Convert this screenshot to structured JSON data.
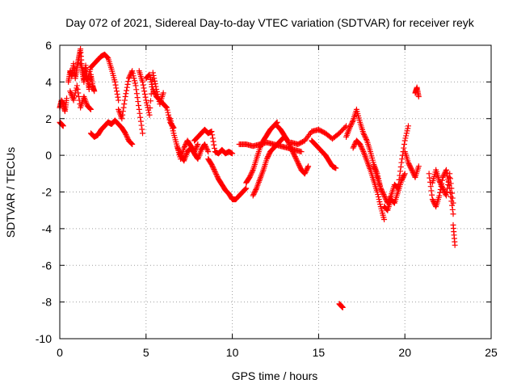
{
  "chart_data": {
    "type": "scatter",
    "title": "Day 072 of 2021, Sidereal Day-to-day VTEC variation (SDTVAR) for receiver reyk",
    "xlabel": "GPS time / hours",
    "ylabel": "SDTVAR / TECUs",
    "xlim": [
      0,
      25
    ],
    "ylim": [
      -10,
      6
    ],
    "xticks": [
      "0",
      "5",
      "10",
      "15",
      "20",
      "25"
    ],
    "yticks": [
      "-10",
      "-8",
      "-6",
      "-4",
      "-2",
      "0",
      "2",
      "4",
      "6"
    ],
    "grid": true,
    "marker": "+",
    "series": [
      {
        "name": "reyk",
        "color": "#ff0000",
        "tracks": [
          {
            "x": [
              0.0,
              0.1,
              0.2,
              0.3,
              0.4
            ],
            "y": [
              2.6,
              3.0,
              2.8,
              2.4,
              3.1
            ]
          },
          {
            "x": [
              0.0,
              0.1,
              0.2
            ],
            "y": [
              1.8,
              1.7,
              1.6
            ]
          },
          {
            "x": [
              0.5,
              0.6,
              0.7,
              0.8,
              0.9,
              1.0,
              1.1,
              1.2,
              1.3,
              1.4,
              1.5,
              1.6,
              1.7,
              1.8,
              1.9,
              2.0
            ],
            "y": [
              4.0,
              4.6,
              4.3,
              5.0,
              4.2,
              4.8,
              5.3,
              5.8,
              4.6,
              4.0,
              4.9,
              4.2,
              3.6,
              4.4,
              3.8,
              3.5
            ]
          },
          {
            "x": [
              0.6,
              0.8,
              1.0,
              1.2,
              1.4,
              1.6,
              1.8
            ],
            "y": [
              3.5,
              3.0,
              3.8,
              2.6,
              3.2,
              2.7,
              2.5
            ]
          },
          {
            "x": [
              1.2,
              1.4,
              1.6,
              1.8,
              2.0,
              2.2,
              2.4,
              2.6,
              2.8,
              3.0,
              3.2,
              3.4
            ],
            "y": [
              5.0,
              4.4,
              4.1,
              4.8,
              5.0,
              5.2,
              5.4,
              5.5,
              5.3,
              4.7,
              4.0,
              3.0
            ]
          },
          {
            "x": [
              1.8,
              2.0,
              2.2,
              2.4,
              2.6,
              2.8,
              3.0
            ],
            "y": [
              1.2,
              1.0,
              1.1,
              1.4,
              1.6,
              1.8,
              1.7
            ]
          },
          {
            "x": [
              2.8,
              3.0,
              3.2,
              3.4,
              3.6,
              3.8,
              4.0,
              4.2
            ],
            "y": [
              1.8,
              1.7,
              1.9,
              1.7,
              1.5,
              1.2,
              0.8,
              0.6
            ]
          },
          {
            "x": [
              3.4,
              3.6,
              3.8,
              4.0,
              4.2,
              4.4,
              4.6,
              4.8
            ],
            "y": [
              2.5,
              2.0,
              3.2,
              4.2,
              4.6,
              3.8,
              2.5,
              1.2
            ]
          },
          {
            "x": [
              4.6,
              4.8,
              5.0,
              5.2,
              5.4,
              5.6,
              5.8,
              6.0
            ],
            "y": [
              4.6,
              4.0,
              3.0,
              2.2,
              4.5,
              3.6,
              2.8,
              3.4
            ]
          },
          {
            "x": [
              5.0,
              5.2,
              5.4,
              5.6,
              5.8,
              6.0,
              6.2,
              6.4,
              6.6
            ],
            "y": [
              4.2,
              4.4,
              3.6,
              3.2,
              3.0,
              2.8,
              2.6,
              1.8,
              1.5
            ]
          },
          {
            "x": [
              6.4,
              6.6,
              6.8,
              7.0,
              7.2,
              7.4,
              7.6,
              7.8,
              8.0
            ],
            "y": [
              2.0,
              1.2,
              0.5,
              -0.2,
              0.4,
              0.8,
              0.5,
              0.2,
              0.6
            ]
          },
          {
            "x": [
              6.8,
              7.0,
              7.2,
              7.4,
              7.6,
              7.8,
              8.0,
              8.2,
              8.4,
              8.6
            ],
            "y": [
              0.5,
              0.0,
              -0.3,
              0.2,
              0.4,
              0.1,
              -0.2,
              0.3,
              0.6,
              0.2
            ]
          },
          {
            "x": [
              7.8,
              8.0,
              8.2,
              8.4,
              8.6,
              8.8,
              9.0,
              9.2,
              9.4,
              9.6,
              9.8,
              10.0
            ],
            "y": [
              0.8,
              1.0,
              1.2,
              1.4,
              1.2,
              1.3,
              0.2,
              0.1,
              0.3,
              0.1,
              0.2,
              0.1
            ]
          },
          {
            "x": [
              8.6,
              8.8,
              9.0,
              9.2,
              9.4,
              9.6,
              9.8,
              10.0,
              10.2,
              10.4,
              10.6,
              10.8
            ],
            "y": [
              -0.2,
              -0.5,
              -0.9,
              -1.3,
              -1.6,
              -1.9,
              -2.1,
              -2.4,
              -2.4,
              -2.2,
              -2.0,
              -1.8
            ]
          },
          {
            "x": [
              10.8,
              11.0,
              11.2,
              11.4,
              11.6,
              11.8,
              12.0,
              12.2,
              12.4,
              12.6
            ],
            "y": [
              -1.5,
              -1.2,
              -0.8,
              -0.2,
              0.4,
              0.8,
              1.1,
              1.4,
              1.6,
              1.8
            ]
          },
          {
            "x": [
              11.2,
              11.4,
              11.6,
              11.8,
              12.0,
              12.2,
              12.4,
              12.6,
              12.8,
              13.0,
              13.2
            ],
            "y": [
              -2.2,
              -1.8,
              -1.3,
              -0.8,
              -0.2,
              0.2,
              0.4,
              0.6,
              0.8,
              1.0,
              0.8
            ]
          },
          {
            "x": [
              12.6,
              12.8,
              13.0,
              13.2,
              13.4,
              13.6,
              13.8,
              14.0,
              14.2,
              14.4
            ],
            "y": [
              1.6,
              1.4,
              1.1,
              0.8,
              0.4,
              0.0,
              -0.4,
              -0.8,
              -1.0,
              -0.6
            ]
          },
          {
            "x": [
              10.4,
              10.8,
              11.2,
              11.6,
              12.0,
              12.4,
              12.8,
              13.2,
              13.6,
              14.0
            ],
            "y": [
              0.6,
              0.6,
              0.5,
              0.6,
              0.7,
              0.6,
              0.5,
              0.4,
              0.3,
              0.2
            ]
          },
          {
            "x": [
              13.4,
              13.8,
              14.2,
              14.6,
              15.0,
              15.4,
              15.8,
              16.2,
              16.6
            ],
            "y": [
              0.7,
              0.6,
              0.8,
              1.3,
              1.4,
              1.2,
              0.9,
              1.2,
              1.6
            ]
          },
          {
            "x": [
              14.6,
              14.8,
              15.0,
              15.2,
              15.4,
              15.6,
              15.8,
              16.0
            ],
            "y": [
              0.8,
              0.6,
              0.4,
              0.2,
              0.0,
              -0.3,
              -0.6,
              -0.7
            ]
          },
          {
            "x": [
              16.2,
              16.3,
              16.4
            ],
            "y": [
              -8.1,
              -8.2,
              -8.3
            ]
          },
          {
            "x": [
              16.6,
              16.8,
              17.0,
              17.2,
              17.4,
              17.6,
              17.8,
              18.0,
              18.2,
              18.4,
              18.6
            ],
            "y": [
              1.0,
              1.5,
              1.9,
              2.5,
              1.8,
              1.2,
              0.8,
              0.2,
              -0.5,
              -1.0,
              -1.8
            ]
          },
          {
            "x": [
              17.0,
              17.2,
              17.4,
              17.6,
              17.8,
              18.0,
              18.2,
              18.4,
              18.6,
              18.8
            ],
            "y": [
              0.4,
              0.8,
              0.6,
              0.2,
              -0.3,
              -0.8,
              -1.4,
              -2.0,
              -2.8,
              -3.5
            ]
          },
          {
            "x": [
              18.2,
              18.4,
              18.6,
              18.8,
              19.0,
              19.2,
              19.4,
              19.6,
              19.8,
              20.0,
              20.2
            ],
            "y": [
              -0.6,
              -1.2,
              -1.8,
              -2.2,
              -2.6,
              -2.2,
              -1.6,
              -1.8,
              -0.4,
              0.8,
              1.6
            ]
          },
          {
            "x": [
              18.8,
              19.0,
              19.2,
              19.4,
              19.6,
              19.8,
              20.0
            ],
            "y": [
              -2.8,
              -3.0,
              -2.4,
              -2.6,
              -2.0,
              -1.4,
              -1.0
            ]
          },
          {
            "x": [
              20.0,
              20.2,
              20.4,
              20.6,
              20.8
            ],
            "y": [
              0.2,
              -0.4,
              -0.8,
              -1.2,
              -0.6
            ]
          },
          {
            "x": [
              20.6,
              20.7,
              20.8
            ],
            "y": [
              3.4,
              3.7,
              3.2
            ]
          },
          {
            "x": [
              21.4,
              21.6,
              21.8,
              22.0,
              22.2,
              22.4,
              22.6,
              22.8
            ],
            "y": [
              -1.0,
              -2.4,
              -2.8,
              -2.2,
              -1.2,
              -0.8,
              -1.8,
              -3.2
            ]
          },
          {
            "x": [
              21.6,
              21.8,
              22.0,
              22.2,
              22.4,
              22.6,
              22.8
            ],
            "y": [
              -1.5,
              -0.8,
              -1.4,
              -1.8,
              -2.2,
              -1.0,
              -2.6
            ]
          },
          {
            "x": [
              22.8,
              22.9
            ],
            "y": [
              -3.8,
              -4.9
            ]
          }
        ]
      }
    ]
  }
}
